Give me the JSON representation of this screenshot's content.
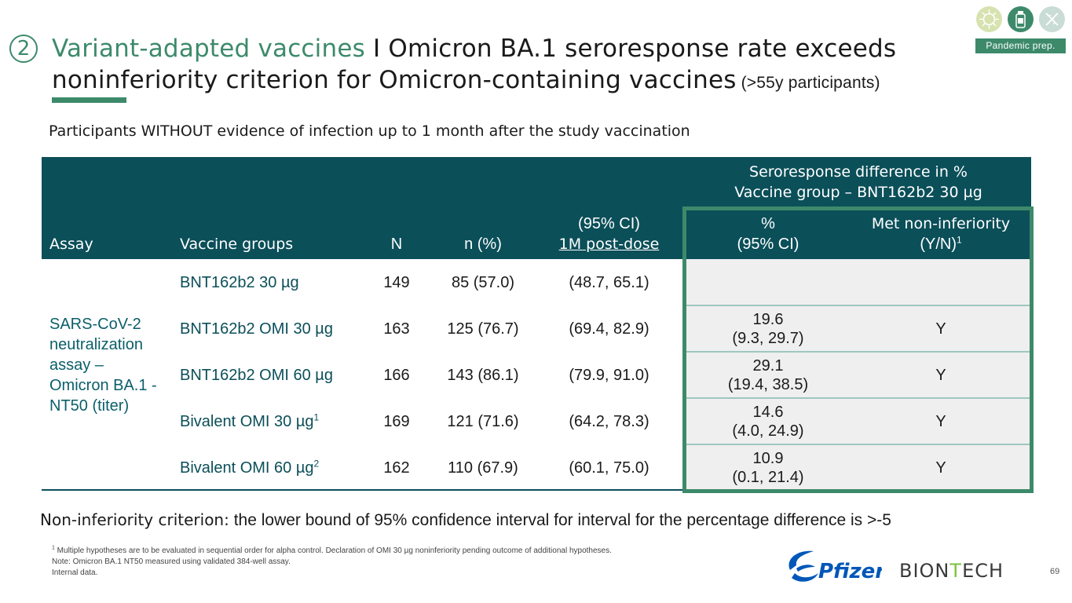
{
  "header": {
    "step_number": "2",
    "title_accent": "Variant-adapted vaccines",
    "title_main": " I Omicron BA.1 seroresponse rate exceeds noninferiority criterion for Omicron-containing vaccines",
    "title_suffix": " (>55y participants)",
    "tag": "Pandemic prep.",
    "icons": [
      "virus-icon",
      "vaccine-vial-icon",
      "dna-icon"
    ]
  },
  "subtitle": "Participants WITHOUT evidence of infection up to 1 month after the study vaccination",
  "table": {
    "group_header_line1": "Seroresponse difference in %",
    "group_header_line2": "Vaccine group – BNT162b2 30 µg",
    "columns": {
      "assay": "Assay",
      "vaccine_groups": "Vaccine groups",
      "n_total": "N",
      "n_percent": "n (%)",
      "ci_line1": "(95% CI)",
      "ci_line2": "1M post-dose",
      "diff_line1": "%",
      "diff_line2": "(95% CI)",
      "met_line1": "Met non-inferiority",
      "met_line2": "(Y/N)",
      "met_sup": "1"
    },
    "assay_label": "SARS-CoV-2 neutralization assay – Omicron BA.1 - NT50 (titer)",
    "rows": [
      {
        "group": "BNT162b2 30 µg",
        "sup": "",
        "N": "149",
        "n_pct": "85 (57.0)",
        "ci": "(48.7, 65.1)",
        "diff": "",
        "diff_ci": "",
        "met": ""
      },
      {
        "group": "BNT162b2 OMI 30 µg",
        "sup": "",
        "N": "163",
        "n_pct": "125 (76.7)",
        "ci": "(69.4, 82.9)",
        "diff": "19.6",
        "diff_ci": "(9.3, 29.7)",
        "met": "Y"
      },
      {
        "group": "BNT162b2 OMI 60 µg",
        "sup": "",
        "N": "166",
        "n_pct": "143 (86.1)",
        "ci": "(79.9, 91.0)",
        "diff": "29.1",
        "diff_ci": "(19.4, 38.5)",
        "met": "Y"
      },
      {
        "group": "Bivalent OMI 30 µg",
        "sup": "1",
        "N": "169",
        "n_pct": "121 (71.6)",
        "ci": "(64.2, 78.3)",
        "diff": "14.6",
        "diff_ci": "(4.0, 24.9)",
        "met": "Y"
      },
      {
        "group": "Bivalent OMI 60 µg",
        "sup": "2",
        "N": "162",
        "n_pct": "110 (67.9)",
        "ci": "(60.1, 75.0)",
        "diff": "10.9",
        "diff_ci": "(0.1, 21.4)",
        "met": "Y"
      }
    ]
  },
  "criterion": {
    "label": "Non-inferiority criterion:",
    "text": " the lower bound of 95% confidence interval for interval for the percentage difference is >-5"
  },
  "footnotes": {
    "note1_sup": "1",
    "note1": " Multiple hypotheses are to be evaluated in sequential order for alpha control. Declaration of OMI 30 µg noninferiority pending outcome of additional hypotheses.",
    "note2": "Note: Omicron BA.1 NT50 measured using validated 384-well assay.",
    "note3": "Internal data."
  },
  "logos": {
    "pfizer": "Pfizer",
    "biontech_left": "BION",
    "biontech_mid": "T",
    "biontech_right": "ECH"
  },
  "page_number": "69",
  "colors": {
    "accent_green": "#3d8a6b",
    "header_teal": "#0b4f59",
    "pfizer_blue": "#0057b8"
  }
}
